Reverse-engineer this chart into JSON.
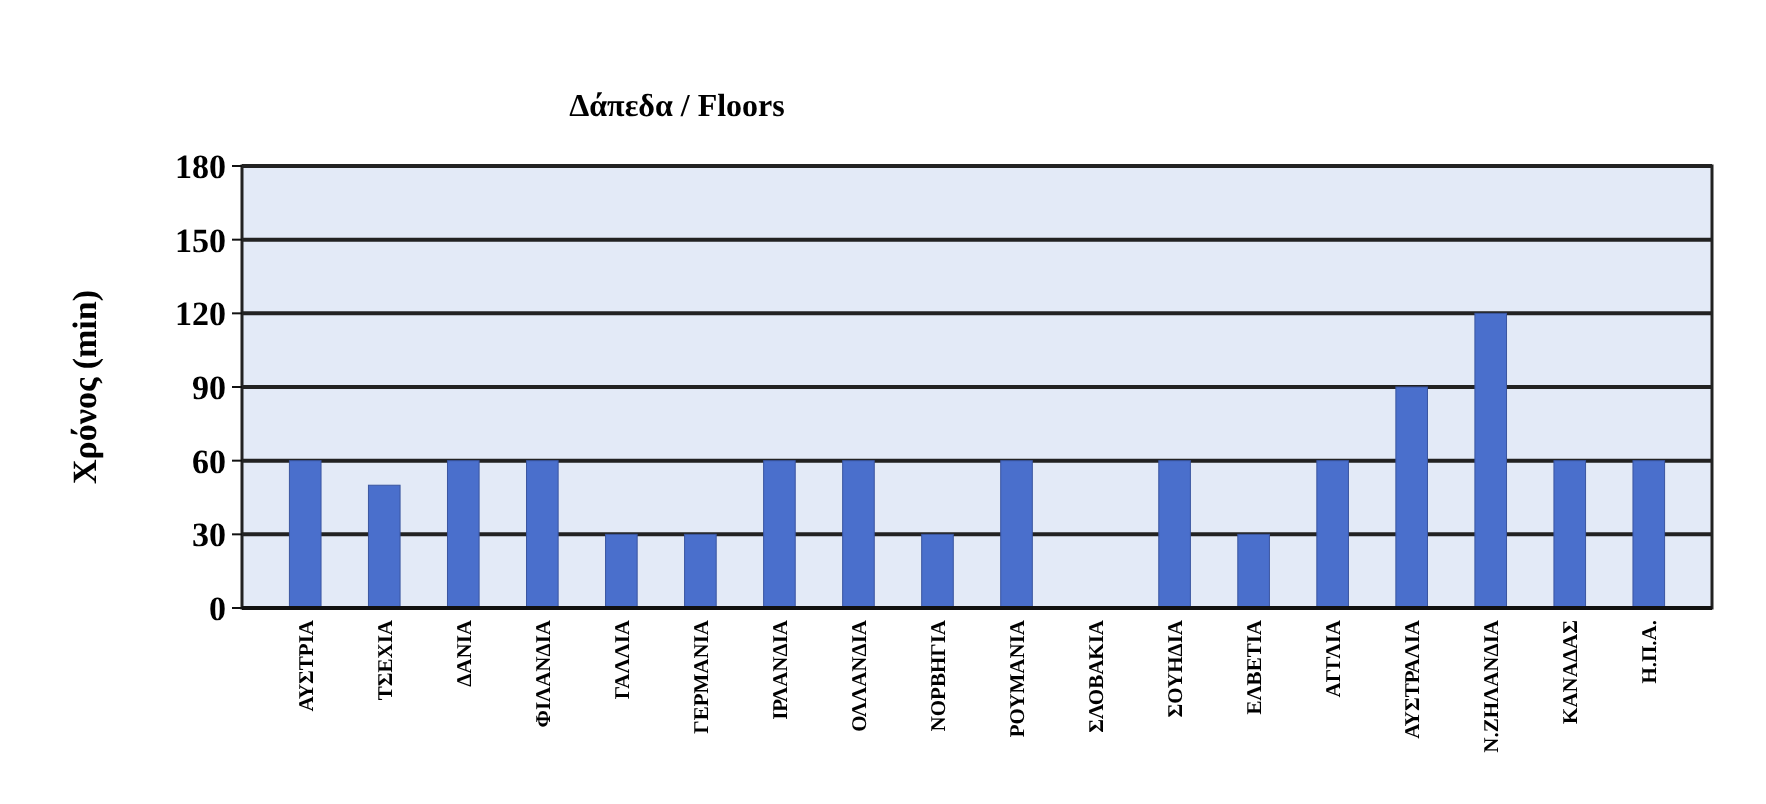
{
  "chart_data": {
    "type": "bar",
    "title": "Δάπεδα / Floors",
    "ylabel": "Χρόνος (min)",
    "categories": [
      "ΑΥΣΤΡΙΑ",
      "ΤΣΕΧΙΑ",
      "ΔΑΝΙΑ",
      "ΦΙΛΑΝΔΙΑ",
      "ΓΑΛΛΙΑ",
      "ΓΕΡΜΑΝΙΑ",
      "ΙΡΛΑΝΔΙΑ",
      "ΟΛΛΑΝΔΙΑ",
      "ΝΟΡΒΗΓΙΑ",
      "ΡΟΥΜΑΝΙΑ",
      "ΣΛΟΒΑΚΙΑ",
      "ΣΟΥΗΔΙΑ",
      "ΕΛΒΕΤΙΑ",
      "ΑΓΓΛΙΑ",
      "ΑΥΣΤΡΑΛΙΑ",
      "Ν.ΖΗΛΑΝΔΙΑ",
      "ΚΑΝΑΔΑΣ",
      "Η.Π.Α."
    ],
    "values": [
      60,
      50,
      60,
      60,
      30,
      30,
      60,
      60,
      30,
      60,
      null,
      60,
      30,
      60,
      90,
      120,
      60,
      60
    ],
    "color": "#4a6fcc",
    "ylim": [
      0,
      180
    ],
    "yticks": [
      0,
      30,
      60,
      90,
      120,
      150,
      180
    ],
    "grid": "y"
  }
}
